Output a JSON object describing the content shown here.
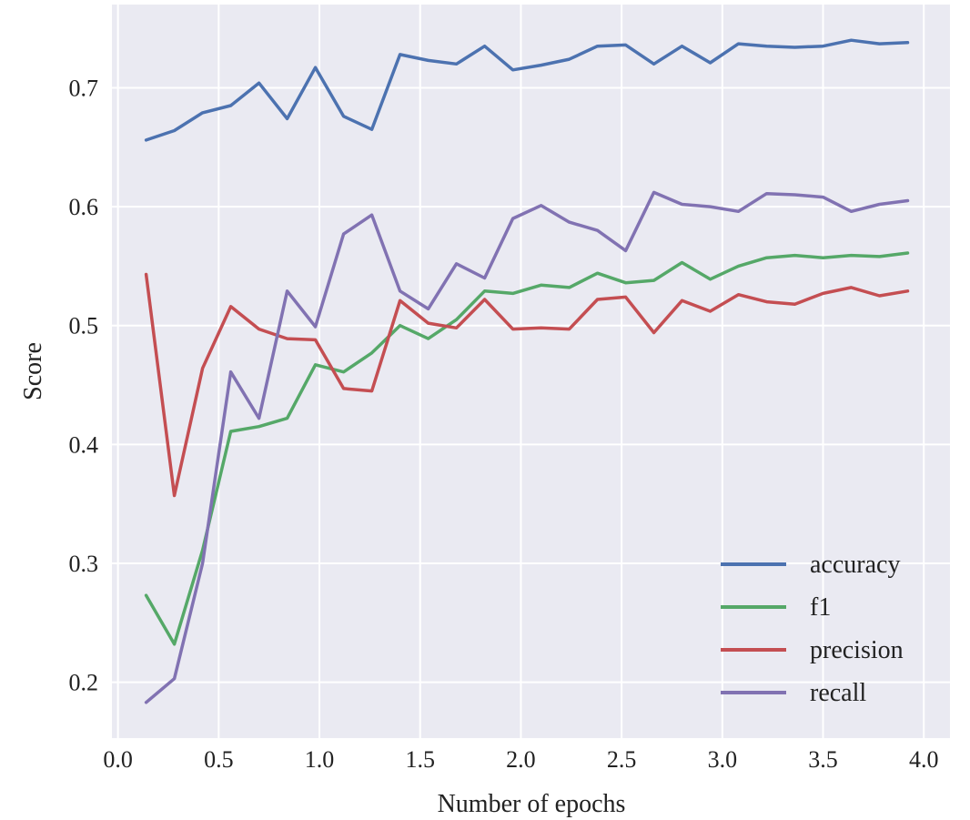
{
  "chart_data": {
    "type": "line",
    "title": "",
    "xlabel": "Number of epochs",
    "ylabel": "Score",
    "xlim": [
      -0.03,
      4.13
    ],
    "ylim": [
      0.153,
      0.77
    ],
    "xticks": [
      0.0,
      0.5,
      1.0,
      1.5,
      2.0,
      2.5,
      3.0,
      3.5,
      4.0
    ],
    "xtick_labels": [
      "0.0",
      "0.5",
      "1.0",
      "1.5",
      "2.0",
      "2.5",
      "3.0",
      "3.5",
      "4.0"
    ],
    "yticks": [
      0.2,
      0.3,
      0.4,
      0.5,
      0.6,
      0.7
    ],
    "ytick_labels": [
      "0.2",
      "0.3",
      "0.4",
      "0.5",
      "0.6",
      "0.7"
    ],
    "grid": true,
    "legend_position": "lower-right",
    "x": [
      0.14,
      0.28,
      0.42,
      0.56,
      0.7,
      0.84,
      0.98,
      1.12,
      1.26,
      1.4,
      1.54,
      1.68,
      1.82,
      1.96,
      2.1,
      2.24,
      2.38,
      2.52,
      2.66,
      2.8,
      2.94,
      3.08,
      3.22,
      3.36,
      3.5,
      3.64,
      3.78,
      3.92
    ],
    "series": [
      {
        "name": "accuracy",
        "color": "#4c72b0",
        "values": [
          0.656,
          0.664,
          0.679,
          0.685,
          0.704,
          0.674,
          0.717,
          0.676,
          0.665,
          0.728,
          0.723,
          0.72,
          0.735,
          0.715,
          0.719,
          0.724,
          0.735,
          0.736,
          0.72,
          0.735,
          0.721,
          0.737,
          0.735,
          0.734,
          0.735,
          0.74,
          0.737,
          0.738
        ]
      },
      {
        "name": "f1",
        "color": "#55a868",
        "values": [
          0.273,
          0.232,
          0.311,
          0.411,
          0.415,
          0.422,
          0.467,
          0.461,
          0.477,
          0.5,
          0.489,
          0.505,
          0.529,
          0.527,
          0.534,
          0.532,
          0.544,
          0.536,
          0.538,
          0.553,
          0.539,
          0.55,
          0.557,
          0.559,
          0.557,
          0.559,
          0.558,
          0.561
        ]
      },
      {
        "name": "precision",
        "color": "#c44e52",
        "values": [
          0.543,
          0.357,
          0.464,
          0.516,
          0.497,
          0.489,
          0.488,
          0.447,
          0.445,
          0.521,
          0.502,
          0.498,
          0.522,
          0.497,
          0.498,
          0.497,
          0.522,
          0.524,
          0.494,
          0.521,
          0.512,
          0.526,
          0.52,
          0.518,
          0.527,
          0.532,
          0.525,
          0.529
        ]
      },
      {
        "name": "recall",
        "color": "#8172b2",
        "values": [
          0.183,
          0.203,
          0.3,
          0.461,
          0.422,
          0.529,
          0.499,
          0.577,
          0.593,
          0.529,
          0.514,
          0.552,
          0.54,
          0.59,
          0.601,
          0.587,
          0.58,
          0.563,
          0.612,
          0.602,
          0.6,
          0.596,
          0.611,
          0.61,
          0.608,
          0.596,
          0.602,
          0.605
        ]
      }
    ]
  }
}
